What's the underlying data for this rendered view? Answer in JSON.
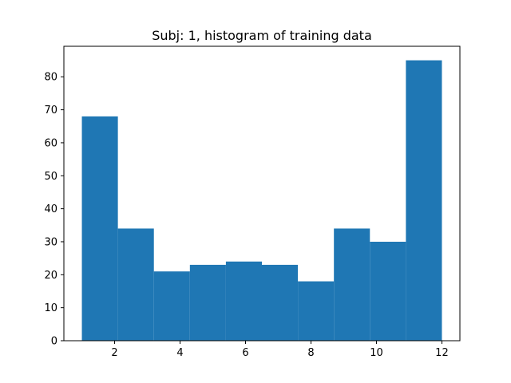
{
  "chart_data": {
    "type": "bar",
    "title": "Subj: 1, histogram of training data",
    "xlabel": "",
    "ylabel": "",
    "bin_edges": [
      1.0,
      2.1,
      3.2,
      4.3,
      5.4,
      6.5,
      7.6,
      8.7,
      9.8,
      10.9,
      12.0
    ],
    "values": [
      68,
      34,
      21,
      23,
      24,
      23,
      18,
      34,
      30,
      85
    ],
    "xlim": [
      0.45,
      12.55
    ],
    "ylim": [
      0,
      89.25
    ],
    "xticks": [
      2,
      4,
      6,
      8,
      10,
      12
    ],
    "yticks": [
      0,
      10,
      20,
      30,
      40,
      50,
      60,
      70,
      80
    ],
    "bar_color": "#1f77b4",
    "grid": false,
    "legend": false
  }
}
